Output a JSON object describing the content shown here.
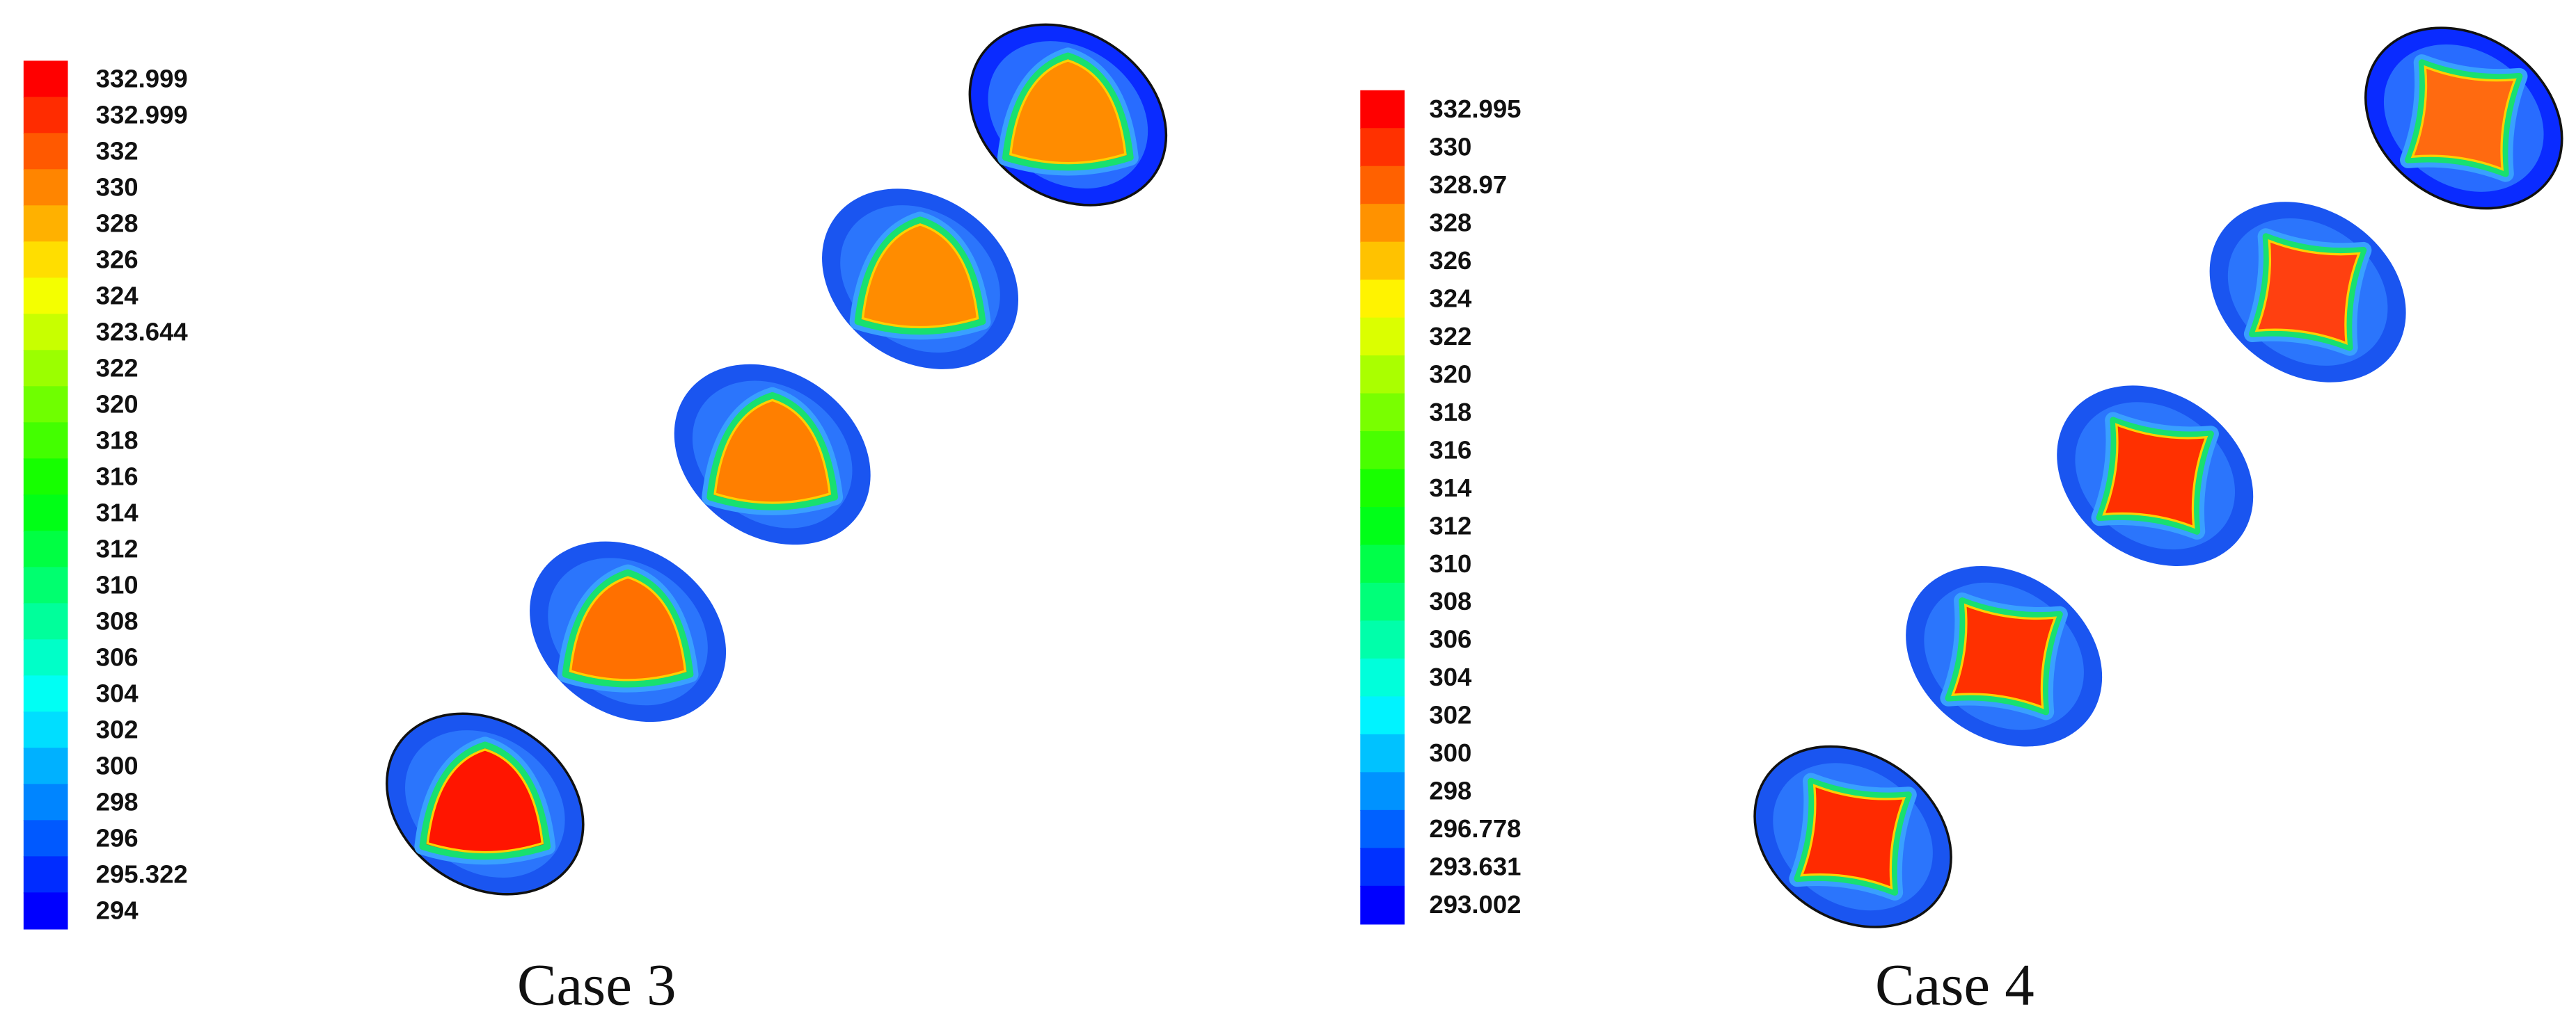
{
  "panels": [
    {
      "caption": "Case 3",
      "legend_labels": [
        "332.999",
        "332.999",
        "332",
        "330",
        "328",
        "326",
        "324",
        "323.644",
        "322",
        "320",
        "318",
        "316",
        "314",
        "312",
        "310",
        "308",
        "306",
        "304",
        "302",
        "300",
        "298",
        "296",
        "295.322",
        "294"
      ]
    },
    {
      "caption": "Case 4",
      "legend_labels": [
        "332.995",
        "330",
        "328.97",
        "328",
        "326",
        "324",
        "322",
        "320",
        "318",
        "316",
        "314",
        "312",
        "310",
        "308",
        "306",
        "304",
        "302",
        "300",
        "298",
        "296.778",
        "293.631",
        "293.002"
      ]
    }
  ]
}
